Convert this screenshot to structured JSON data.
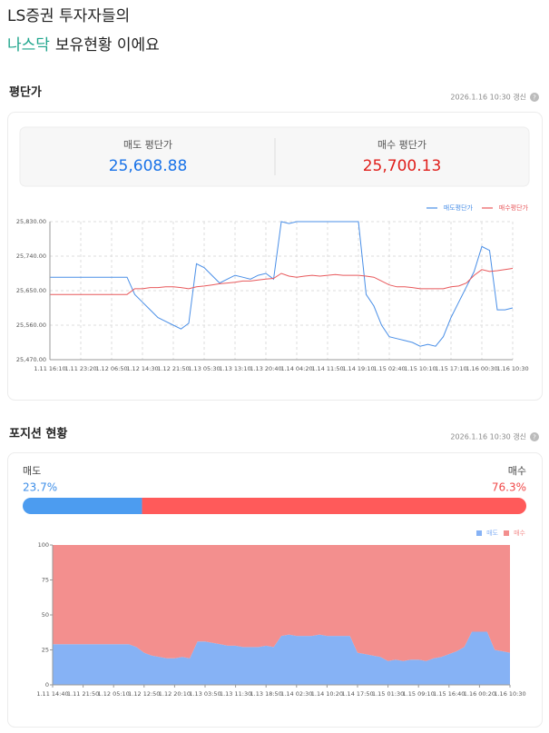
{
  "header": {
    "line1": "LS증권 투자자들의",
    "highlight": "나스닥",
    "line2": "보유현황 이에요"
  },
  "avg_section": {
    "title": "평단가",
    "updated": "2026.1.16 10:30 갱신",
    "help_icon": "?",
    "sell_label": "매도 평단가",
    "sell_value": "25,608.88",
    "buy_label": "매수 평단가",
    "buy_value": "25,700.13"
  },
  "position_section": {
    "title": "포지션 현황",
    "updated": "2026.1.16 10:30 갱신",
    "help_icon": "?",
    "sell": {
      "label": "매도",
      "value": 23.7,
      "value_label": "23.7%",
      "color": "#4c9cf0"
    },
    "buy": {
      "label": "매수",
      "value": 76.3,
      "value_label": "76.3%",
      "color": "#ff5a5a"
    }
  },
  "chart_data": [
    {
      "type": "line",
      "legend": "top-right",
      "grid": true,
      "categories": [
        "1.11 16:10",
        null,
        null,
        null,
        "1.11 23:20",
        null,
        null,
        null,
        "1.12 06:50",
        null,
        null,
        null,
        "1.12 14:30",
        null,
        null,
        null,
        "1.12 21:50",
        null,
        null,
        null,
        "1.13 05:30",
        null,
        null,
        null,
        "1.13 13:10",
        null,
        null,
        null,
        "1.13 20:40",
        null,
        null,
        null,
        "1.14 04:20",
        null,
        null,
        null,
        "1.14 11:50",
        null,
        null,
        null,
        "1.14 19:10",
        null,
        null,
        null,
        "1.15 02:40",
        null,
        null,
        null,
        "1.15 10:10",
        null,
        null,
        null,
        "1.15 17:10",
        null,
        null,
        null,
        "1.16 00:30",
        null,
        null,
        null,
        "1.16 10:30"
      ],
      "ylim": [
        25470,
        25830
      ],
      "yticks": [
        {
          "value": 25470,
          "label": "25,470.00"
        },
        {
          "value": 25560,
          "label": "25,560.00"
        },
        {
          "value": 25650,
          "label": "25,650.00"
        },
        {
          "value": 25740,
          "label": "25,740.00"
        },
        {
          "value": 25830,
          "label": "25,830.00"
        }
      ],
      "series": [
        {
          "name": "매도평단가",
          "color": "#4a8fe7",
          "values": [
            25685,
            25685,
            25685,
            25685,
            25685,
            25685,
            25685,
            25685,
            25685,
            25685,
            25685,
            25640,
            25620,
            25600,
            25580,
            25570,
            25560,
            25550,
            25565,
            25720,
            25710,
            25690,
            25670,
            25680,
            25690,
            25685,
            25680,
            25690,
            25695,
            25680,
            25830,
            25825,
            25830,
            25830,
            25830,
            25830,
            25830,
            25830,
            25830,
            25830,
            25830,
            25640,
            25610,
            25560,
            25530,
            25525,
            25520,
            25515,
            25505,
            25510,
            25505,
            25530,
            25580,
            25620,
            25660,
            25700,
            25765,
            25755,
            25600,
            25600,
            25605
          ]
        },
        {
          "name": "매수평단가",
          "color": "#e8595c",
          "values": [
            25640,
            25640,
            25640,
            25640,
            25640,
            25640,
            25640,
            25640,
            25640,
            25640,
            25640,
            25655,
            25655,
            25658,
            25658,
            25660,
            25660,
            25658,
            25655,
            25660,
            25662,
            25665,
            25668,
            25670,
            25672,
            25675,
            25675,
            25678,
            25680,
            25682,
            25695,
            25688,
            25685,
            25688,
            25690,
            25688,
            25690,
            25692,
            25690,
            25690,
            25690,
            25688,
            25685,
            25675,
            25665,
            25660,
            25660,
            25658,
            25655,
            25655,
            25655,
            25655,
            25660,
            25662,
            25670,
            25690,
            25705,
            25700,
            25702,
            25705,
            25708
          ]
        }
      ]
    },
    {
      "type": "area",
      "stacked": true,
      "legend": "top-right",
      "grid": false,
      "categories": [
        "1.11 14:40",
        null,
        null,
        null,
        "1.11 21:50",
        null,
        null,
        null,
        "1.12 05:10",
        null,
        null,
        null,
        "1.12 12:50",
        null,
        null,
        null,
        "1.12 20:10",
        null,
        null,
        null,
        "1.13 03:50",
        null,
        null,
        null,
        "1.13 11:30",
        null,
        null,
        null,
        "1.13 18:50",
        null,
        null,
        null,
        "1.14 02:30",
        null,
        null,
        null,
        "1.14 10:20",
        null,
        null,
        null,
        "1.14 17:50",
        null,
        null,
        null,
        "1.15 01:30",
        null,
        null,
        null,
        "1.15 09:10",
        null,
        null,
        null,
        "1.15 16:40",
        null,
        null,
        null,
        "1.16 00:20",
        null,
        null,
        null,
        "1.16 10:30"
      ],
      "ylim": [
        0,
        100
      ],
      "yticks": [
        0,
        25,
        50,
        75,
        100
      ],
      "series": [
        {
          "name": "매도",
          "color": "#86b2f5",
          "values": [
            29,
            29,
            29,
            29,
            29,
            29,
            29,
            29,
            29,
            29,
            29,
            27,
            23,
            21,
            20,
            19,
            19,
            20,
            19,
            31,
            31,
            30,
            29,
            28,
            28,
            27,
            27,
            27,
            28,
            27,
            35,
            36,
            35,
            35,
            35,
            36,
            35,
            35,
            35,
            35,
            23,
            22,
            21,
            20,
            17,
            18,
            17,
            18,
            18,
            17,
            19,
            20,
            22,
            24,
            27,
            38,
            38,
            38,
            25,
            24,
            23
          ]
        },
        {
          "name": "매수",
          "color": "#f38f8e",
          "values": [
            71,
            71,
            71,
            71,
            71,
            71,
            71,
            71,
            71,
            71,
            71,
            73,
            77,
            79,
            80,
            81,
            81,
            80,
            81,
            69,
            69,
            70,
            71,
            72,
            72,
            73,
            73,
            73,
            72,
            73,
            65,
            64,
            65,
            65,
            65,
            64,
            65,
            65,
            65,
            65,
            77,
            78,
            79,
            80,
            83,
            82,
            83,
            82,
            82,
            83,
            81,
            80,
            78,
            76,
            73,
            62,
            62,
            62,
            75,
            76,
            77
          ]
        }
      ]
    }
  ]
}
